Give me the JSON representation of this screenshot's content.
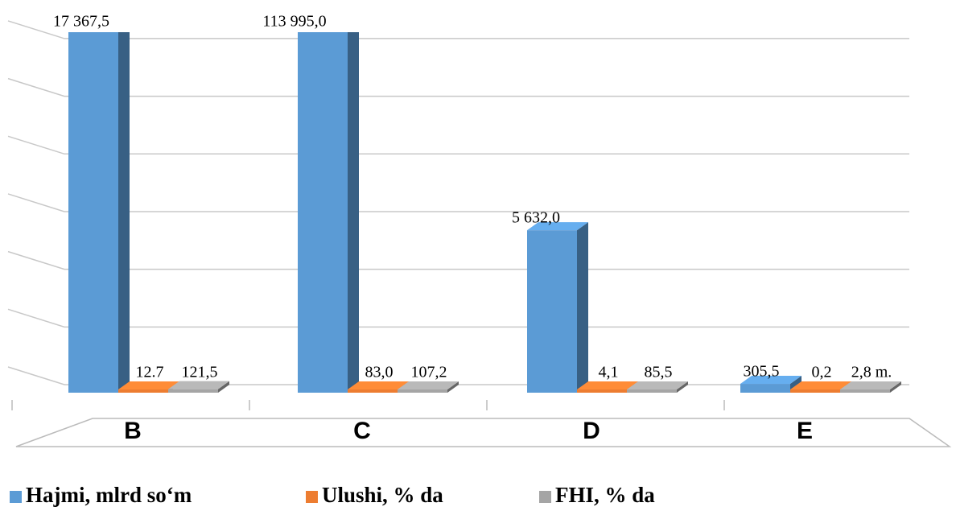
{
  "chart_data": {
    "type": "bar3d",
    "categories": [
      "B",
      "C",
      "D",
      "E"
    ],
    "series": [
      {
        "name": "Hajmi, mlrd so‘m",
        "color": "#5b9bd5",
        "values": [
          17367.5,
          113995.0,
          5632.0,
          305.5
        ],
        "value_labels": [
          "17 367,5",
          "113 995,0",
          "5 632,0",
          "305,5"
        ]
      },
      {
        "name": "Ulushi, % da",
        "color": "#ed7d31",
        "values": [
          12.7,
          83.0,
          4.1,
          0.2
        ],
        "value_labels": [
          "12.7",
          "83,0",
          "4,1",
          "0,2"
        ]
      },
      {
        "name": "FHI, % da",
        "color": "#a5a5a5",
        "values": [
          121.5,
          107.2,
          85.5,
          2.8
        ],
        "value_labels": [
          "121,5",
          "107,2",
          "85,5",
          "2,8 m."
        ]
      }
    ],
    "ylim": [
      0,
      12500
    ],
    "yticks": [
      0,
      2000,
      4000,
      6000,
      8000,
      10000,
      12000
    ],
    "grid": true,
    "legend": "bottom"
  }
}
